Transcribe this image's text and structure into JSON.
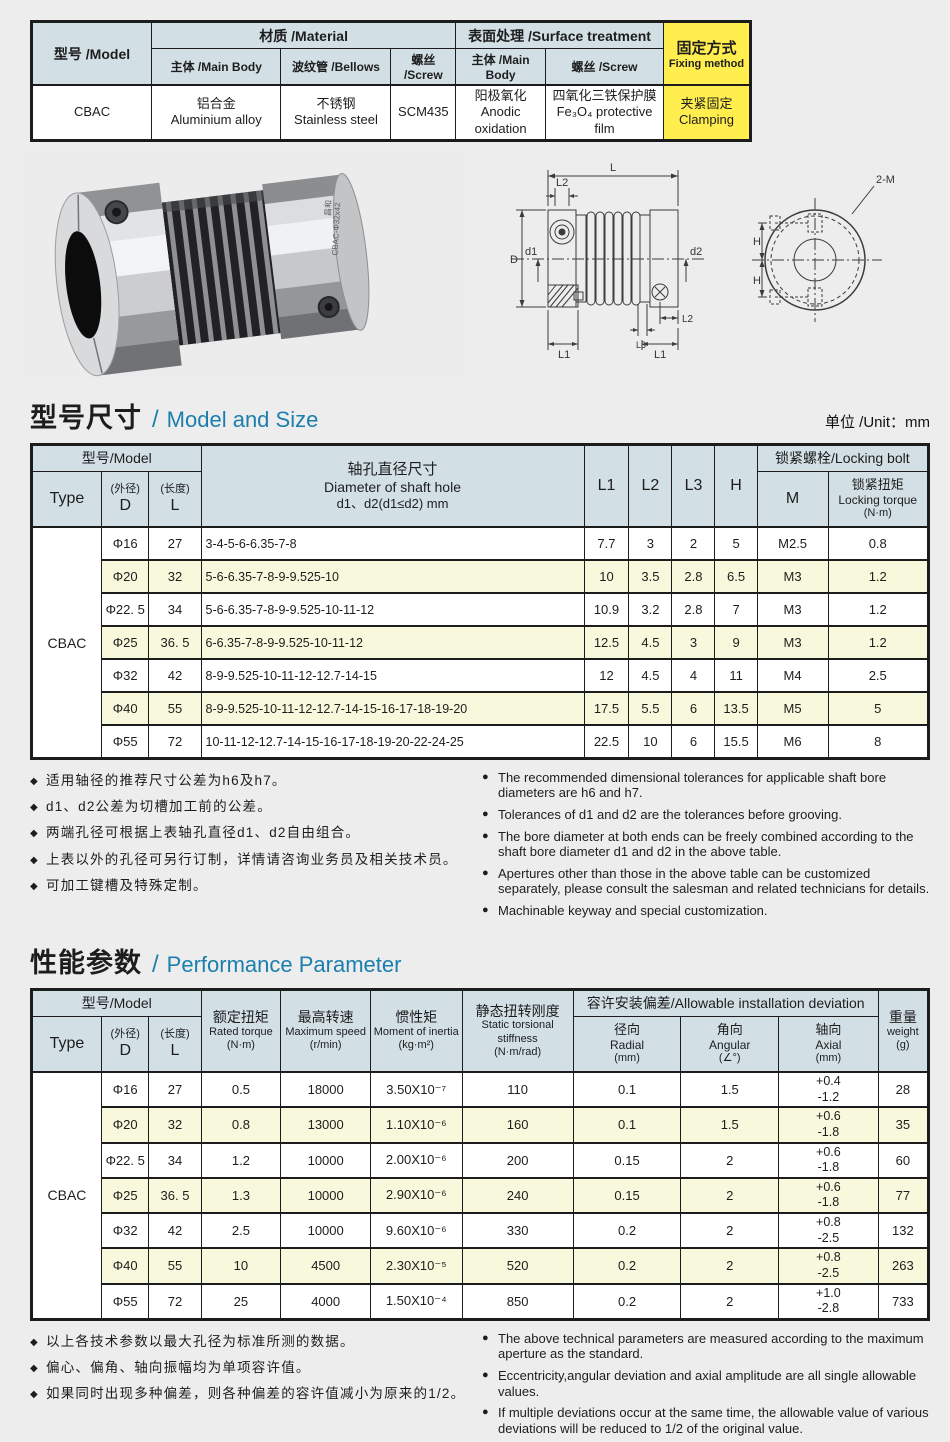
{
  "colors": {
    "page_bg": "#ededed",
    "header_bg": "#d2e0e6",
    "accent_yellow": "#ffee4d",
    "row_alt": "#f8f8dc",
    "heading_blue": "#1b7fae"
  },
  "top_table": {
    "model_header": "型号 /Model",
    "material_header": "材质 /Material",
    "surface_header": "表面处理 /Surface treatment",
    "fixing_header_cn": "固定方式",
    "fixing_header_en": "Fixing method",
    "sub_main_body": "主体 /Main Body",
    "sub_bellows": "波纹管 /Bellows",
    "sub_screw": "螺丝 /Screw",
    "sub_surface_main": "主体 /Main Body",
    "sub_surface_screw": "螺丝 /Screw",
    "row": {
      "model": "CBAC",
      "main_body_cn": "铝合金",
      "main_body_en": "Aluminium alloy",
      "bellows_cn": "不锈钢",
      "bellows_en": "Stainless steel",
      "screw": "SCM435",
      "surface_main_cn": "阳极氧化",
      "surface_main_en": "Anodic oxidation",
      "surface_screw_cn": "四氧化三铁保护膜",
      "surface_screw_en": "Fe₃O₄ protective film",
      "fixing_cn": "夹紧固定",
      "fixing_en": "Clamping"
    }
  },
  "photo": {
    "brand": "昌和",
    "engraving": "CBAC-Φ32x42"
  },
  "drawing": {
    "l": "L",
    "l1": "L1",
    "l2": "L2",
    "l3": "L3",
    "h": "H",
    "d": "D",
    "d1": "d1",
    "d2": "d2",
    "two_m": "2-M"
  },
  "size_section": {
    "title_cn": "型号尺寸",
    "sep": "/",
    "title_en": "Model and Size",
    "unit": "单位 /Unit：mm"
  },
  "size_table": {
    "type": "CBAC",
    "header": {
      "model_group": "型号/Model",
      "type": "Type",
      "d_cn": "(外径)",
      "d": "D",
      "l_cn": "(长度)",
      "l": "L",
      "shaft_lines": [
        "轴孔直径尺寸",
        "Diameter of shaft hole",
        "d1、d2(d1≤d2) mm"
      ],
      "l1": "L1",
      "l2": "L2",
      "l3": "L3",
      "h": "H",
      "locking_group": "锁紧螺栓/Locking bolt",
      "m": "M",
      "torque_lines": [
        "锁紧扭矩",
        "Locking torque",
        "(N·m)"
      ]
    },
    "rows": [
      {
        "d": "Φ16",
        "l": "27",
        "holes": "3-4-5-6-6.35-7-8",
        "l1": "7.7",
        "l2": "3",
        "l3": "2",
        "h": "5",
        "m": "M2.5",
        "torque": "0.8"
      },
      {
        "d": "Φ20",
        "l": "32",
        "holes": "5-6-6.35-7-8-9-9.525-10",
        "l1": "10",
        "l2": "3.5",
        "l3": "2.8",
        "h": "6.5",
        "m": "M3",
        "torque": "1.2"
      },
      {
        "d": "Φ22. 5",
        "l": "34",
        "holes": "5-6-6.35-7-8-9-9.525-10-11-12",
        "l1": "10.9",
        "l2": "3.2",
        "l3": "2.8",
        "h": "7",
        "m": "M3",
        "torque": "1.2"
      },
      {
        "d": "Φ25",
        "l": "36. 5",
        "holes": "6-6.35-7-8-9-9.525-10-11-12",
        "l1": "12.5",
        "l2": "4.5",
        "l3": "3",
        "h": "9",
        "m": "M3",
        "torque": "1.2"
      },
      {
        "d": "Φ32",
        "l": "42",
        "holes": "8-9-9.525-10-11-12-12.7-14-15",
        "l1": "12",
        "l2": "4.5",
        "l3": "4",
        "h": "11",
        "m": "M4",
        "torque": "2.5"
      },
      {
        "d": "Φ40",
        "l": "55",
        "holes": "8-9-9.525-10-11-12-12.7-14-15-16-17-18-19-20",
        "l1": "17.5",
        "l2": "5.5",
        "l3": "6",
        "h": "13.5",
        "m": "M5",
        "torque": "5"
      },
      {
        "d": "Φ55",
        "l": "72",
        "holes": "10-11-12-12.7-14-15-16-17-18-19-20-22-24-25",
        "l1": "22.5",
        "l2": "10",
        "l3": "6",
        "h": "15.5",
        "m": "M6",
        "torque": "8"
      }
    ]
  },
  "size_notes_cn": [
    "适用轴径的推荐尺寸公差为h6及h7。",
    "d1、d2公差为切槽加工前的公差。",
    "两端孔径可根据上表轴孔直径d1、d2自由组合。",
    "上表以外的孔径可另行订制，详情请咨询业务员及相关技术员。",
    "可加工键槽及特殊定制。"
  ],
  "size_notes_en": [
    "The recommended dimensional tolerances for applicable shaft bore diameters are h6 and h7.",
    "Tolerances of d1 and d2 are the tolerances before grooving.",
    "The bore diameter at both ends can be freely combined according to the shaft bore diameter d1 and d2 in the above table.",
    "Apertures other than those in the above table can be customized separately, please consult the salesman and related technicians for details.",
    "Machinable keyway and special customization."
  ],
  "perf_section": {
    "title_cn": "性能参数",
    "sep": "/",
    "title_en": "Performance Parameter"
  },
  "perf_table": {
    "type": "CBAC",
    "header": {
      "model_group": "型号/Model",
      "type": "Type",
      "d_cn": "(外径)",
      "d": "D",
      "l_cn": "(长度)",
      "l": "L",
      "rated_lines": [
        "额定扭矩",
        "Rated torque",
        "(N·m)"
      ],
      "speed_lines": [
        "最高转速",
        "Maximum speed",
        "(r/min)"
      ],
      "inertia_lines": [
        "惯性矩",
        "Moment of inertia",
        "(kg·m²)"
      ],
      "stiffness_lines": [
        "静态扭转刚度",
        "Static torsional stiffness",
        "(N·m/rad)"
      ],
      "deviation_group": "容许安装偏差/Allowable installation deviation",
      "radial_lines": [
        "径向",
        "Radial",
        "(mm)"
      ],
      "angular_lines": [
        "角向",
        "Angular",
        "(∠°)"
      ],
      "axial_lines": [
        "轴向",
        "Axial",
        "(mm)"
      ],
      "weight_lines": [
        "重量",
        "weight",
        "(g)"
      ]
    },
    "rows": [
      {
        "d": "Φ16",
        "l": "27",
        "torque": "0.5",
        "speed": "18000",
        "inertia": "3.50X10⁻⁷",
        "stiffness": "110",
        "radial": "0.1",
        "angular": "1.5",
        "axial_plus": "+0.4",
        "axial_minus": "-1.2",
        "weight": "28"
      },
      {
        "d": "Φ20",
        "l": "32",
        "torque": "0.8",
        "speed": "13000",
        "inertia": "1.10X10⁻⁶",
        "stiffness": "160",
        "radial": "0.1",
        "angular": "1.5",
        "axial_plus": "+0.6",
        "axial_minus": "-1.8",
        "weight": "35"
      },
      {
        "d": "Φ22. 5",
        "l": "34",
        "torque": "1.2",
        "speed": "10000",
        "inertia": "2.00X10⁻⁶",
        "stiffness": "200",
        "radial": "0.15",
        "angular": "2",
        "axial_plus": "+0.6",
        "axial_minus": "-1.8",
        "weight": "60"
      },
      {
        "d": "Φ25",
        "l": "36. 5",
        "torque": "1.3",
        "speed": "10000",
        "inertia": "2.90X10⁻⁶",
        "stiffness": "240",
        "radial": "0.15",
        "angular": "2",
        "axial_plus": "+0.6",
        "axial_minus": "-1.8",
        "weight": "77"
      },
      {
        "d": "Φ32",
        "l": "42",
        "torque": "2.5",
        "speed": "10000",
        "inertia": "9.60X10⁻⁶",
        "stiffness": "330",
        "radial": "0.2",
        "angular": "2",
        "axial_plus": "+0.8",
        "axial_minus": "-2.5",
        "weight": "132"
      },
      {
        "d": "Φ40",
        "l": "55",
        "torque": "10",
        "speed": "4500",
        "inertia": "2.30X10⁻⁵",
        "stiffness": "520",
        "radial": "0.2",
        "angular": "2",
        "axial_plus": "+0.8",
        "axial_minus": "-2.5",
        "weight": "263"
      },
      {
        "d": "Φ55",
        "l": "72",
        "torque": "25",
        "speed": "4000",
        "inertia": "1.50X10⁻⁴",
        "stiffness": "850",
        "radial": "0.2",
        "angular": "2",
        "axial_plus": "+1.0",
        "axial_minus": "-2.8",
        "weight": "733"
      }
    ]
  },
  "perf_notes_cn": [
    "以上各技术参数以最大孔径为标准所测的数据。",
    "偏心、偏角、轴向振幅均为单项容许值。",
    "如果同时出现多种偏差，则各种偏差的容许值减小为原来的1/2。"
  ],
  "perf_notes_en": [
    "The above technical parameters are measured according to the maximum aperture as the standard.",
    "Eccentricity,angular deviation and axial amplitude are all single allowable values.",
    "If multiple deviations occur at the same time, the allowable value of various deviations will be reduced to 1/2 of the original value."
  ]
}
